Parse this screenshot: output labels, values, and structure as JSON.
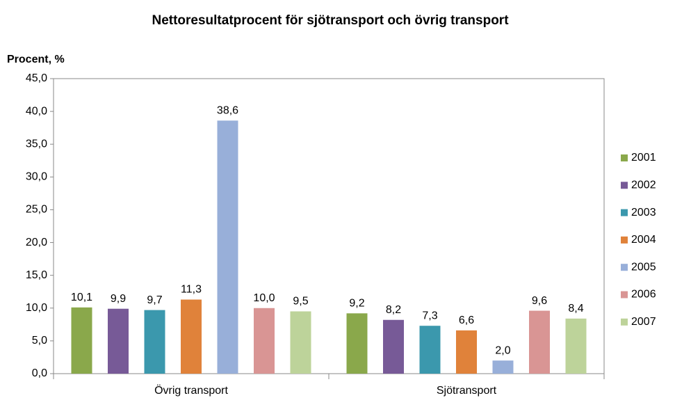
{
  "chart_data": {
    "type": "bar",
    "title": "Nettoresultatprocent  för sjötransport  och övrig transport",
    "y_label": "Procent, %",
    "categories": [
      "Övrig transport",
      "Sjötransport"
    ],
    "series": [
      {
        "name": "2001",
        "color": "#8aa84b",
        "values": [
          10.1,
          9.2
        ],
        "value_labels": [
          "10,1",
          "9,2"
        ]
      },
      {
        "name": "2002",
        "color": "#775a97",
        "values": [
          9.9,
          8.2
        ],
        "value_labels": [
          "9,9",
          "8,2"
        ]
      },
      {
        "name": "2003",
        "color": "#3b98ad",
        "values": [
          9.7,
          7.3
        ],
        "value_labels": [
          "9,7",
          "7,3"
        ]
      },
      {
        "name": "2004",
        "color": "#e0823a",
        "values": [
          11.3,
          6.6
        ],
        "value_labels": [
          "11,3",
          "6,6"
        ]
      },
      {
        "name": "2005",
        "color": "#98afd9",
        "values": [
          38.6,
          2.0
        ],
        "value_labels": [
          "38,6",
          "2,0"
        ]
      },
      {
        "name": "2006",
        "color": "#d99594",
        "values": [
          10.0,
          9.6
        ],
        "value_labels": [
          "10,0",
          "9,6"
        ]
      },
      {
        "name": "2007",
        "color": "#bdd39a",
        "values": [
          9.5,
          8.4
        ],
        "value_labels": [
          "9,5",
          "8,4"
        ]
      }
    ],
    "ylim": [
      0,
      45
    ],
    "yticks": [
      {
        "value": 0,
        "label": "0,0"
      },
      {
        "value": 5,
        "label": "5,0"
      },
      {
        "value": 10,
        "label": "10,0"
      },
      {
        "value": 15,
        "label": "15,0"
      },
      {
        "value": 20,
        "label": "20,0"
      },
      {
        "value": 25,
        "label": "25,0"
      },
      {
        "value": 30,
        "label": "30,0"
      },
      {
        "value": 35,
        "label": "35,0"
      },
      {
        "value": 40,
        "label": "40,0"
      },
      {
        "value": 45,
        "label": "45,0"
      }
    ],
    "grid": false,
    "legend": "right"
  }
}
